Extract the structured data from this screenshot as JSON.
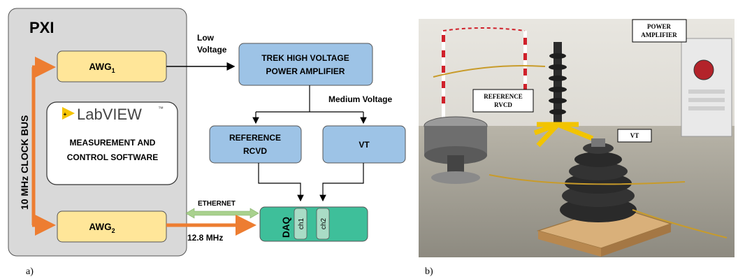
{
  "panel_a": {
    "caption": "a)",
    "pxi": {
      "title": "PXI",
      "clock_bus": "10 MHz CLOCK BUS"
    },
    "awg1": {
      "base": "AWG",
      "sub": "1"
    },
    "awg2": {
      "base": "AWG",
      "sub": "2"
    },
    "labview": {
      "logo": "LabVIEW",
      "tm": "™",
      "line1": "MEASUREMENT AND",
      "line2": "CONTROL SOFTWARE"
    },
    "low_voltage": {
      "line1": "Low",
      "line2": "Voltage"
    },
    "trek": {
      "line1": "TREK HIGH VOLTAGE",
      "line2": "POWER AMPLIFIER"
    },
    "medium_voltage": "Medium Voltage",
    "reference": {
      "line1": "REFERENCE",
      "line2": "RCVD"
    },
    "vt": "VT",
    "daq": {
      "label": "DAQ",
      "ch1": "ch1",
      "ch2": "ch2"
    },
    "ethernet": "ETHERNET",
    "clock_freq": "12.8 MHz",
    "colors": {
      "pxi_bg": "#d9d9d9",
      "awg_fill": "#ffe699",
      "blue_box": "#9dc3e6",
      "daq_fill": "#3ebf9a",
      "orange": "#ed7d31",
      "green_arrow": "#a9d18e"
    }
  },
  "panel_b": {
    "caption": "b)",
    "labels": {
      "power_amp": {
        "line1": "POWER",
        "line2": "AMPLIFIER"
      },
      "reference": {
        "line1": "REFERENCE",
        "line2": "RVCD"
      },
      "vt": "VT"
    }
  }
}
